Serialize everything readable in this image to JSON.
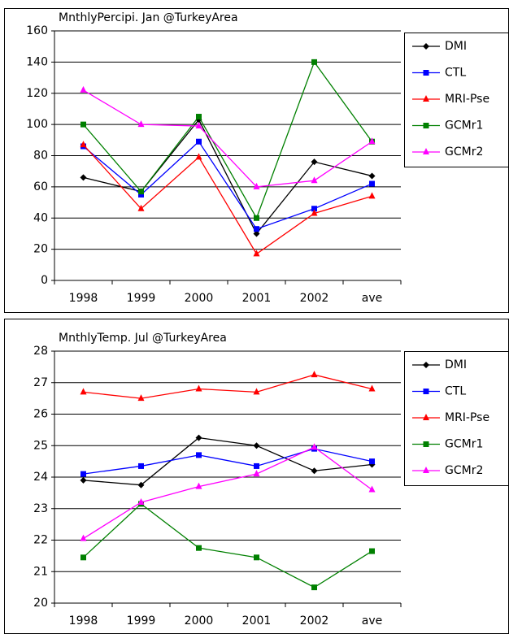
{
  "chart_data": [
    {
      "type": "line",
      "title": "MnthlyPercipi. Jan @TurkeyArea",
      "categories": [
        "1998",
        "1999",
        "2000",
        "2001",
        "2002",
        "ave"
      ],
      "ylim": [
        0,
        160
      ],
      "yticks": [
        0,
        20,
        40,
        60,
        80,
        100,
        120,
        140,
        160
      ],
      "grid": true,
      "legend": "right",
      "series": [
        {
          "name": "DMI",
          "color": "#000000",
          "marker": "diamond",
          "values": [
            66,
            57,
            103,
            30,
            76,
            67
          ]
        },
        {
          "name": "CTL",
          "color": "#0000ff",
          "marker": "square",
          "values": [
            86,
            55,
            89,
            33,
            46,
            62
          ]
        },
        {
          "name": "MRI-Pse",
          "color": "#ff0000",
          "marker": "triangle",
          "values": [
            87,
            46,
            79,
            17,
            43,
            54
          ]
        },
        {
          "name": "GCMr1",
          "color": "#008000",
          "marker": "square",
          "values": [
            100,
            57,
            105,
            40,
            140,
            89
          ]
        },
        {
          "name": "GCMr2",
          "color": "#ff00ff",
          "marker": "triangle",
          "values": [
            122,
            100,
            99,
            60,
            64,
            89
          ]
        }
      ]
    },
    {
      "type": "line",
      "title": "MnthlyTemp. Jul @TurkeyArea",
      "categories": [
        "1998",
        "1999",
        "2000",
        "2001",
        "2002",
        "ave"
      ],
      "ylim": [
        20,
        28
      ],
      "yticks": [
        20,
        21,
        22,
        23,
        24,
        25,
        26,
        27,
        28
      ],
      "grid": true,
      "legend": "right",
      "series": [
        {
          "name": "DMI",
          "color": "#000000",
          "marker": "diamond",
          "values": [
            23.9,
            23.75,
            25.25,
            25.0,
            24.2,
            24.4
          ]
        },
        {
          "name": "CTL",
          "color": "#0000ff",
          "marker": "square",
          "values": [
            24.1,
            24.35,
            24.7,
            24.35,
            24.9,
            24.5
          ]
        },
        {
          "name": "MRI-Pse",
          "color": "#ff0000",
          "marker": "triangle",
          "values": [
            26.7,
            26.5,
            26.8,
            26.7,
            27.25,
            26.8
          ]
        },
        {
          "name": "GCMr1",
          "color": "#008000",
          "marker": "square",
          "values": [
            21.45,
            23.15,
            21.75,
            21.45,
            20.5,
            21.65
          ]
        },
        {
          "name": "GCMr2",
          "color": "#ff00ff",
          "marker": "triangle",
          "values": [
            22.05,
            23.2,
            23.7,
            24.1,
            24.95,
            23.6
          ]
        }
      ]
    }
  ]
}
